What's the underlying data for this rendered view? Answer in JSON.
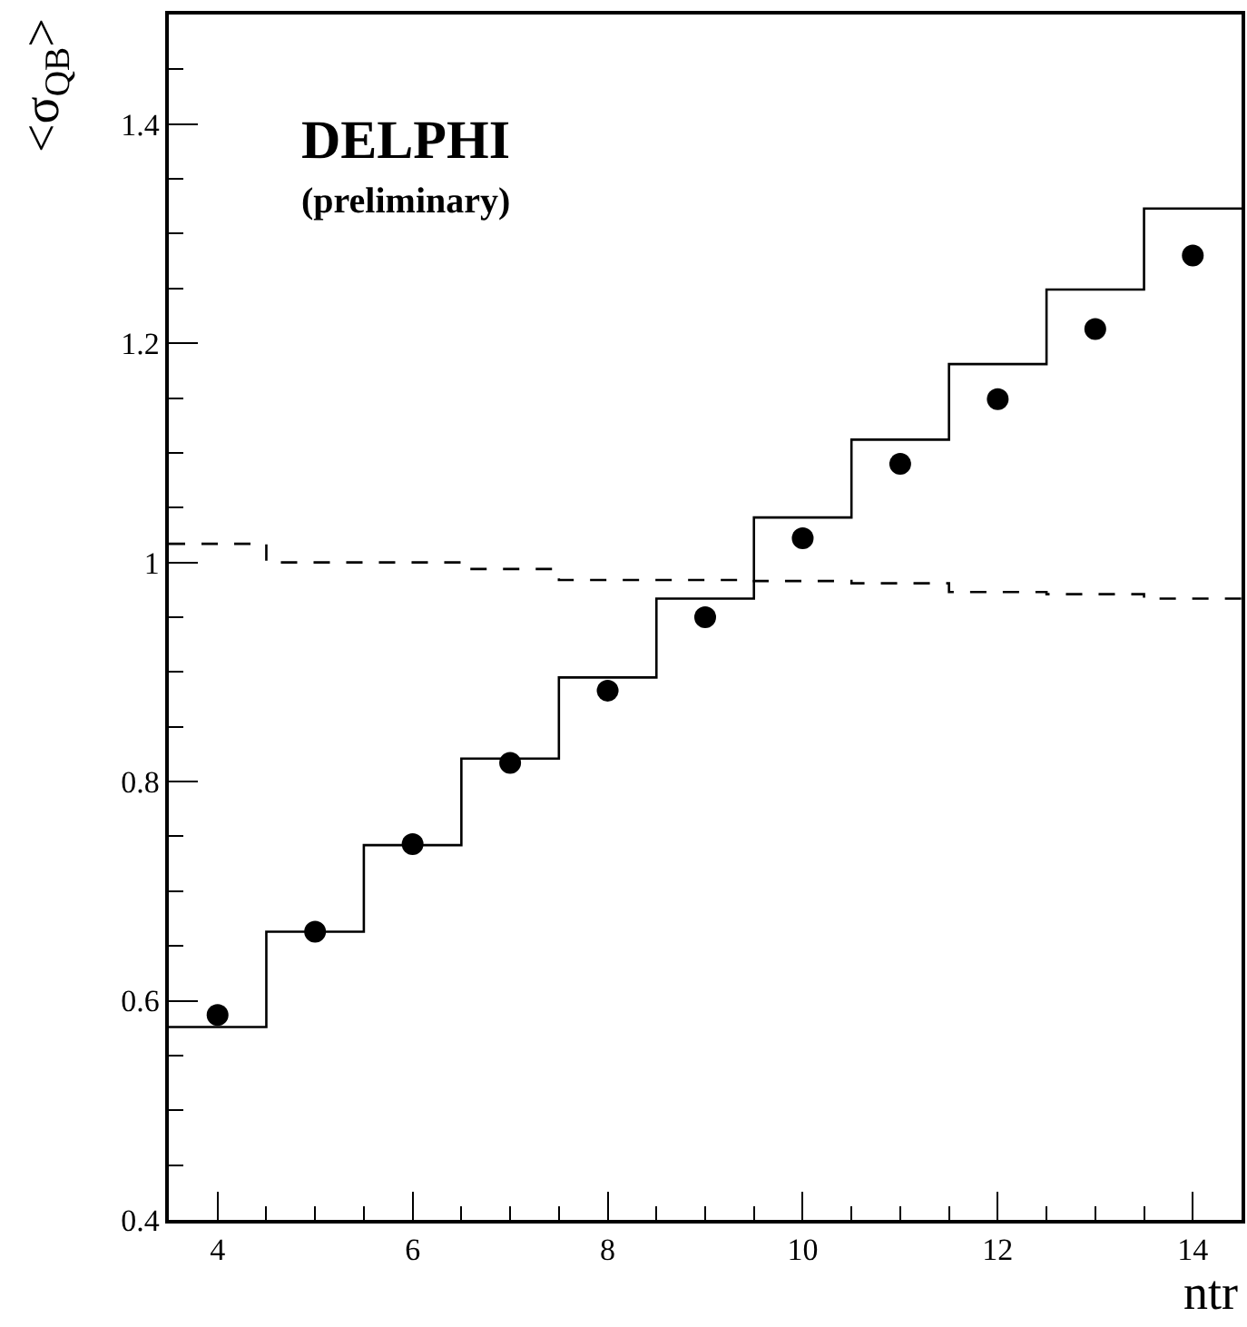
{
  "chart_data": {
    "type": "scatter",
    "ylabel": "<σ$_{QB}$>",
    "xlabel": "ntr",
    "annotations": [
      "DELPHI",
      "(preliminary)"
    ],
    "x": [
      4,
      5,
      6,
      7,
      8,
      9,
      10,
      11,
      12,
      13,
      14
    ],
    "series": [
      {
        "color": "#000000",
        "marker": "circle",
        "values": [
          0.587,
          0.663,
          0.743,
          0.817,
          0.883,
          0.95,
          1.022,
          1.09,
          1.149,
          1.213,
          1.28
        ]
      },
      {
        "type": "step",
        "color": "#000000",
        "marker": "none",
        "line_style": "solid",
        "x": [
          3.5,
          4.5,
          5.5,
          6.5,
          7.5,
          8.5,
          9.5,
          10.5,
          11.5,
          12.5,
          13.5,
          14.5
        ],
        "values": [
          0.576,
          0.663,
          0.742,
          0.821,
          0.895,
          0.967,
          1.041,
          1.112,
          1.181,
          1.249,
          1.323,
          1.323
        ]
      },
      {
        "type": "step",
        "color": "#000000",
        "marker": "none",
        "line_style": "dashed",
        "x": [
          3.5,
          4.5,
          5.5,
          6.5,
          7.5,
          8.5,
          9.5,
          10.5,
          11.5,
          12.5,
          13.5,
          14.5
        ],
        "values": [
          1.017,
          1.0,
          1.0,
          0.994,
          0.984,
          0.984,
          0.983,
          0.981,
          0.973,
          0.971,
          0.967,
          0.967
        ]
      }
    ],
    "xlim": [
      3.5,
      14.5
    ],
    "xticks": [
      {
        "value": 4.5,
        "label": null
      },
      4,
      {
        "value": 5,
        "label": null
      },
      {
        "value": 5.5,
        "label": null
      },
      6,
      {
        "value": 6.5,
        "label": null
      },
      {
        "value": 7,
        "label": null
      },
      {
        "value": 7.5,
        "label": null
      },
      8,
      {
        "value": 8.5,
        "label": null
      },
      {
        "value": 9,
        "label": null
      },
      {
        "value": 9.5,
        "label": null
      },
      10,
      {
        "value": 10.5,
        "label": null
      },
      {
        "value": 11,
        "label": null
      },
      {
        "value": 11.5,
        "label": null
      },
      12,
      {
        "value": 12.5,
        "label": null
      },
      {
        "value": 13,
        "label": null
      },
      {
        "value": 13.5,
        "label": null
      },
      14
    ],
    "ylim": [
      0.4,
      1.5
    ],
    "yticks": [
      0.4,
      {
        "value": 0.45,
        "label": null
      },
      {
        "value": 0.5,
        "label": null
      },
      {
        "value": 0.55,
        "label": null
      },
      0.6,
      {
        "value": 0.65,
        "label": null
      },
      {
        "value": 0.7,
        "label": null
      },
      {
        "value": 0.75,
        "label": null
      },
      0.8,
      {
        "value": 0.85,
        "label": null
      },
      {
        "value": 0.9,
        "label": null
      },
      {
        "value": 0.95,
        "label": null
      },
      1,
      {
        "value": 1.05,
        "label": null
      },
      {
        "value": 1.1,
        "label": null
      },
      {
        "value": 1.15,
        "label": null
      },
      1.2,
      {
        "value": 1.25,
        "label": null
      },
      {
        "value": 1.3,
        "label": null
      },
      {
        "value": 1.35,
        "label": null
      },
      1.4,
      {
        "value": 1.45,
        "label": null
      }
    ]
  }
}
